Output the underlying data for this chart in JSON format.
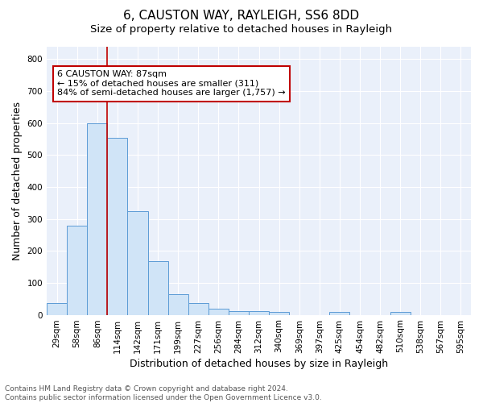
{
  "title1": "6, CAUSTON WAY, RAYLEIGH, SS6 8DD",
  "title2": "Size of property relative to detached houses in Rayleigh",
  "xlabel": "Distribution of detached houses by size in Rayleigh",
  "ylabel": "Number of detached properties",
  "bar_labels": [
    "29sqm",
    "58sqm",
    "86sqm",
    "114sqm",
    "142sqm",
    "171sqm",
    "199sqm",
    "227sqm",
    "256sqm",
    "284sqm",
    "312sqm",
    "340sqm",
    "369sqm",
    "397sqm",
    "425sqm",
    "454sqm",
    "482sqm",
    "510sqm",
    "538sqm",
    "567sqm",
    "595sqm"
  ],
  "bar_values": [
    38,
    280,
    600,
    553,
    325,
    168,
    65,
    38,
    18,
    11,
    11,
    10,
    0,
    0,
    10,
    0,
    0,
    10,
    0,
    0,
    0
  ],
  "bar_color": "#d0e4f7",
  "bar_edge_color": "#5b9bd5",
  "vline_x_idx": 2,
  "vline_color": "#c00000",
  "annotation_text": "6 CAUSTON WAY: 87sqm\n← 15% of detached houses are smaller (311)\n84% of semi-detached houses are larger (1,757) →",
  "annotation_box_color": "#ffffff",
  "annotation_box_edge": "#c00000",
  "ylim": [
    0,
    840
  ],
  "yticks": [
    0,
    100,
    200,
    300,
    400,
    500,
    600,
    700,
    800
  ],
  "footnote": "Contains HM Land Registry data © Crown copyright and database right 2024.\nContains public sector information licensed under the Open Government Licence v3.0.",
  "plot_bg_color": "#eaf0fa",
  "title1_fontsize": 11,
  "title2_fontsize": 9.5,
  "xlabel_fontsize": 9,
  "ylabel_fontsize": 9,
  "tick_fontsize": 7.5,
  "annotation_fontsize": 8,
  "footnote_fontsize": 6.5
}
